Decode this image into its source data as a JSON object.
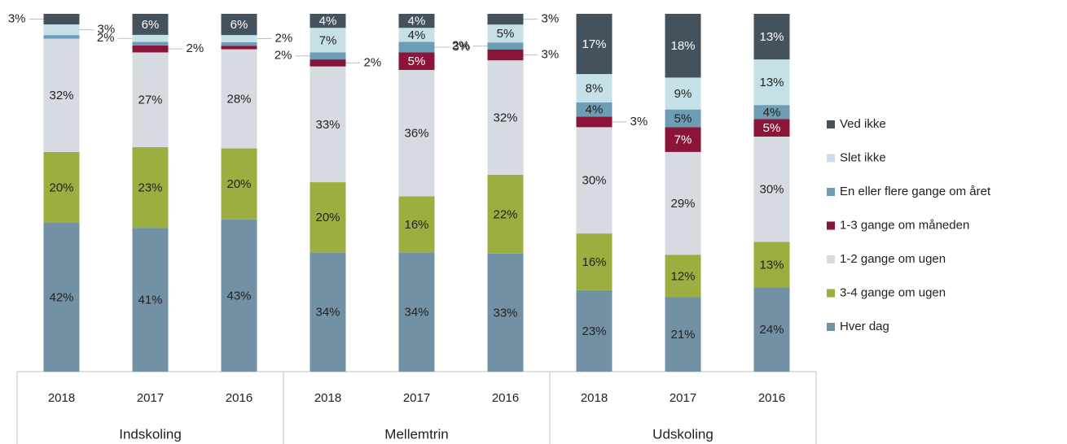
{
  "chart_data": {
    "type": "stacked-bar-100",
    "groups": [
      {
        "label": "Indskoling",
        "categories": [
          "2018",
          "2017",
          "2016"
        ]
      },
      {
        "label": "Mellemtrin",
        "categories": [
          "2018",
          "2017",
          "2016"
        ]
      },
      {
        "label": "Udskoling",
        "categories": [
          "2018",
          "2017",
          "2016"
        ]
      }
    ],
    "series": [
      {
        "name": "Hver dag",
        "color": "#7391a5",
        "values": [
          42,
          41,
          43,
          34,
          34,
          33,
          23,
          21,
          24
        ],
        "value_labels": [
          "42%",
          "41%",
          "43%",
          "34%",
          "34%",
          "33%",
          "23%",
          "21%",
          "24%"
        ]
      },
      {
        "name": "3-4 gange om ugen",
        "color": "#9bae40",
        "values": [
          20,
          23,
          20,
          20,
          16,
          22,
          16,
          12,
          13
        ],
        "value_labels": [
          "20%",
          "23%",
          "20%",
          "20%",
          "16%",
          "22%",
          "16%",
          "12%",
          "13%"
        ]
      },
      {
        "name": "1-2 gange om ugen",
        "color": "#d6dbe2",
        "values": [
          32,
          27,
          28,
          33,
          36,
          32,
          30,
          29,
          30
        ],
        "value_labels": [
          "32%",
          "27%",
          "28%",
          "33%",
          "36%",
          "32%",
          "30%",
          "29%",
          "30%"
        ]
      },
      {
        "name": "1-3 gange om måneden",
        "color": "#8a1538",
        "values": [
          0,
          2,
          1,
          2,
          5,
          3,
          3,
          7,
          5
        ],
        "value_labels": [
          null,
          "2%",
          null,
          "2%",
          "5%",
          "3%",
          "3%",
          "7%",
          "5%"
        ]
      },
      {
        "name": "En eller flere gange om året",
        "color": "#6d9db4",
        "values": [
          1,
          1,
          1,
          2,
          3,
          2,
          4,
          5,
          4
        ],
        "value_labels": [
          null,
          null,
          null,
          "2%",
          "3%",
          "2%",
          "4%",
          "5%",
          "4%"
        ]
      },
      {
        "name": "Slet ikke",
        "color": "#c6e0e8",
        "values": [
          3,
          2,
          2,
          7,
          4,
          5,
          8,
          9,
          13
        ],
        "value_labels": [
          "3%",
          "2%",
          "2%",
          "7%",
          "4%",
          "5%",
          "8%",
          "9%",
          "13%"
        ]
      },
      {
        "name": "Ved ikke",
        "color": "#44525e",
        "values": [
          3,
          6,
          6,
          4,
          4,
          3,
          17,
          18,
          13
        ],
        "value_labels": [
          "3%",
          "6%",
          "6%",
          "4%",
          "4%",
          "3%",
          "17%",
          "18%",
          "13%"
        ]
      }
    ]
  }
}
